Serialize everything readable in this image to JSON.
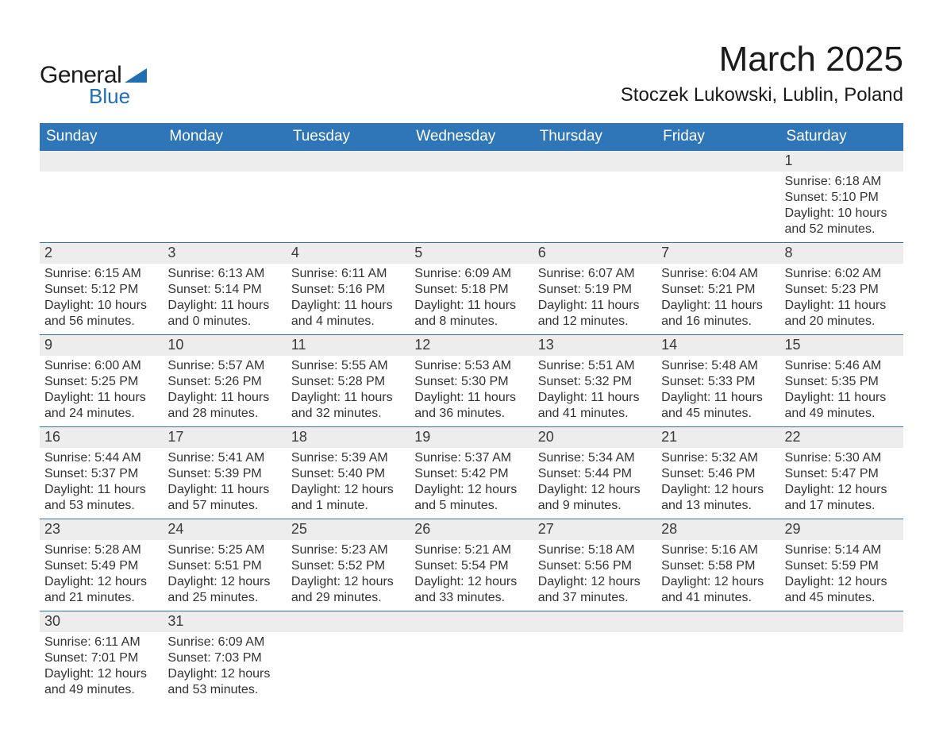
{
  "logo": {
    "general": "General",
    "blue": "Blue"
  },
  "header": {
    "title": "March 2025",
    "location": "Stoczek Lukowski, Lublin, Poland"
  },
  "weekdays": [
    "Sunday",
    "Monday",
    "Tuesday",
    "Wednesday",
    "Thursday",
    "Friday",
    "Saturday"
  ],
  "colors": {
    "header_bg": "#2f76b8",
    "header_text": "#ffffff",
    "daynum_bg": "#ededed",
    "row_border": "#2f76b8",
    "text": "#333333"
  },
  "fonts": {
    "title_size_pt": 33,
    "location_size_pt": 18,
    "weekday_size_pt": 14,
    "daynum_size_pt": 14,
    "body_size_pt": 12
  },
  "days": {
    "1": {
      "sunrise": "6:18 AM",
      "sunset": "5:10 PM",
      "daylight": "10 hours and 52 minutes."
    },
    "2": {
      "sunrise": "6:15 AM",
      "sunset": "5:12 PM",
      "daylight": "10 hours and 56 minutes."
    },
    "3": {
      "sunrise": "6:13 AM",
      "sunset": "5:14 PM",
      "daylight": "11 hours and 0 minutes."
    },
    "4": {
      "sunrise": "6:11 AM",
      "sunset": "5:16 PM",
      "daylight": "11 hours and 4 minutes."
    },
    "5": {
      "sunrise": "6:09 AM",
      "sunset": "5:18 PM",
      "daylight": "11 hours and 8 minutes."
    },
    "6": {
      "sunrise": "6:07 AM",
      "sunset": "5:19 PM",
      "daylight": "11 hours and 12 minutes."
    },
    "7": {
      "sunrise": "6:04 AM",
      "sunset": "5:21 PM",
      "daylight": "11 hours and 16 minutes."
    },
    "8": {
      "sunrise": "6:02 AM",
      "sunset": "5:23 PM",
      "daylight": "11 hours and 20 minutes."
    },
    "9": {
      "sunrise": "6:00 AM",
      "sunset": "5:25 PM",
      "daylight": "11 hours and 24 minutes."
    },
    "10": {
      "sunrise": "5:57 AM",
      "sunset": "5:26 PM",
      "daylight": "11 hours and 28 minutes."
    },
    "11": {
      "sunrise": "5:55 AM",
      "sunset": "5:28 PM",
      "daylight": "11 hours and 32 minutes."
    },
    "12": {
      "sunrise": "5:53 AM",
      "sunset": "5:30 PM",
      "daylight": "11 hours and 36 minutes."
    },
    "13": {
      "sunrise": "5:51 AM",
      "sunset": "5:32 PM",
      "daylight": "11 hours and 41 minutes."
    },
    "14": {
      "sunrise": "5:48 AM",
      "sunset": "5:33 PM",
      "daylight": "11 hours and 45 minutes."
    },
    "15": {
      "sunrise": "5:46 AM",
      "sunset": "5:35 PM",
      "daylight": "11 hours and 49 minutes."
    },
    "16": {
      "sunrise": "5:44 AM",
      "sunset": "5:37 PM",
      "daylight": "11 hours and 53 minutes."
    },
    "17": {
      "sunrise": "5:41 AM",
      "sunset": "5:39 PM",
      "daylight": "11 hours and 57 minutes."
    },
    "18": {
      "sunrise": "5:39 AM",
      "sunset": "5:40 PM",
      "daylight": "12 hours and 1 minute."
    },
    "19": {
      "sunrise": "5:37 AM",
      "sunset": "5:42 PM",
      "daylight": "12 hours and 5 minutes."
    },
    "20": {
      "sunrise": "5:34 AM",
      "sunset": "5:44 PM",
      "daylight": "12 hours and 9 minutes."
    },
    "21": {
      "sunrise": "5:32 AM",
      "sunset": "5:46 PM",
      "daylight": "12 hours and 13 minutes."
    },
    "22": {
      "sunrise": "5:30 AM",
      "sunset": "5:47 PM",
      "daylight": "12 hours and 17 minutes."
    },
    "23": {
      "sunrise": "5:28 AM",
      "sunset": "5:49 PM",
      "daylight": "12 hours and 21 minutes."
    },
    "24": {
      "sunrise": "5:25 AM",
      "sunset": "5:51 PM",
      "daylight": "12 hours and 25 minutes."
    },
    "25": {
      "sunrise": "5:23 AM",
      "sunset": "5:52 PM",
      "daylight": "12 hours and 29 minutes."
    },
    "26": {
      "sunrise": "5:21 AM",
      "sunset": "5:54 PM",
      "daylight": "12 hours and 33 minutes."
    },
    "27": {
      "sunrise": "5:18 AM",
      "sunset": "5:56 PM",
      "daylight": "12 hours and 37 minutes."
    },
    "28": {
      "sunrise": "5:16 AM",
      "sunset": "5:58 PM",
      "daylight": "12 hours and 41 minutes."
    },
    "29": {
      "sunrise": "5:14 AM",
      "sunset": "5:59 PM",
      "daylight": "12 hours and 45 minutes."
    },
    "30": {
      "sunrise": "6:11 AM",
      "sunset": "7:01 PM",
      "daylight": "12 hours and 49 minutes."
    },
    "31": {
      "sunrise": "6:09 AM",
      "sunset": "7:03 PM",
      "daylight": "12 hours and 53 minutes."
    }
  },
  "labels": {
    "sunrise_prefix": "Sunrise: ",
    "sunset_prefix": "Sunset: ",
    "daylight_prefix": "Daylight: "
  },
  "layout": {
    "first_weekday_index": 6,
    "days_in_month": 31,
    "columns": 7
  }
}
